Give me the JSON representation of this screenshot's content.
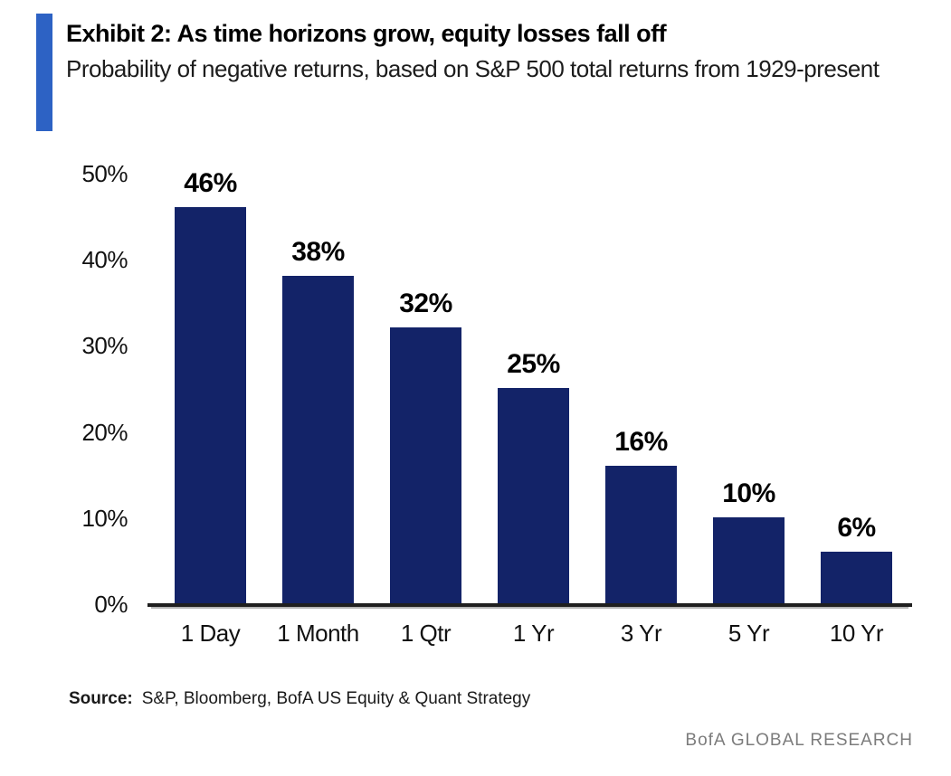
{
  "header": {
    "exhibit_title": "Exhibit 2: As time horizons grow, equity losses fall off",
    "subtitle": "Probability of negative returns, based on S&P 500 total returns from 1929-present",
    "accent_color": "#2d62c4"
  },
  "chart_data": {
    "type": "bar",
    "title": "Exhibit 2: As time horizons grow, equity losses fall off",
    "subtitle": "Probability of negative returns, based on S&P 500 total returns from 1929-present",
    "categories": [
      "1 Day",
      "1 Month",
      "1 Qtr",
      "1 Yr",
      "3 Yr",
      "5 Yr",
      "10 Yr"
    ],
    "values": [
      46,
      38,
      32,
      25,
      16,
      10,
      6
    ],
    "value_labels": [
      "46%",
      "38%",
      "32%",
      "25%",
      "16%",
      "10%",
      "6%"
    ],
    "xlabel": "",
    "ylabel": "",
    "ylim": [
      0,
      50
    ],
    "yticks": [
      0,
      10,
      20,
      30,
      40,
      50
    ],
    "ytick_labels": [
      "0%",
      "10%",
      "20%",
      "30%",
      "40%",
      "50%"
    ],
    "grid": false,
    "legend": false,
    "bar_color": "#132368",
    "axis_line_color": "#1f1f1f"
  },
  "footer": {
    "source_label": "Source:",
    "source_text": "S&P, Bloomberg, BofA US Equity & Quant Strategy",
    "brand": "BofA GLOBAL RESEARCH"
  }
}
